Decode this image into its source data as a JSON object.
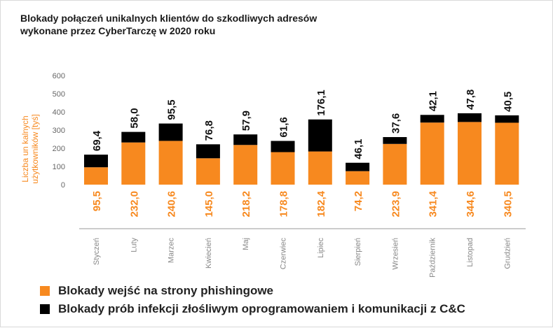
{
  "title_line1": "Blokady połączeń unikalnych klientów do szkodliwych adresów",
  "title_line2": "wykonane przez CyberTarczę w 2020 roku",
  "chart_data": {
    "type": "bar",
    "stacked": true,
    "title": "Blokady połączeń unikalnych klientów do szkodliwych adresów wykonane przez CyberTarczę w 2020 roku",
    "ylabel_line1": "Liczba un kalnych",
    "ylabel_line2": "użytkowników [tyś]",
    "xlabel": "",
    "ylim": [
      0,
      600
    ],
    "yticks": [
      0,
      100,
      200,
      300,
      400,
      500,
      600
    ],
    "grid": false,
    "categories": [
      "Styczeń",
      "Luty",
      "Marzec",
      "Kwiecień",
      "Maj",
      "Czerwiec",
      "Lipiec",
      "Sierpień",
      "Wrzesień",
      "Październik",
      "Listopad",
      "Grudzień"
    ],
    "series": [
      {
        "name": "Blokady wejść na strony phishingowe",
        "color": "#f7891f",
        "values": [
          95.5,
          232.0,
          240.6,
          145.0,
          218.2,
          178.8,
          182.4,
          74.2,
          223.9,
          341.4,
          344.6,
          340.5
        ],
        "labels": [
          "95,5",
          "232,0",
          "240,6",
          "145,0",
          "218,2",
          "178,8",
          "182,4",
          "74,2",
          "223,9",
          "341,4",
          "344,6",
          "340,5"
        ]
      },
      {
        "name": "Blokady prób infekcji złośliwym oprogramowaniem i komunikacji z C&C",
        "color": "#000000",
        "values": [
          69.4,
          58.0,
          95.5,
          76.8,
          57.9,
          61.6,
          176.1,
          46.1,
          37.6,
          42.1,
          47.8,
          40.5
        ],
        "labels": [
          "69,4",
          "58,0",
          "95,5",
          "76,8",
          "57,9",
          "61,6",
          "176,1",
          "46,1",
          "37,6",
          "42,1",
          "47,8",
          "40,5"
        ]
      }
    ],
    "legend_position": "bottom-left"
  }
}
